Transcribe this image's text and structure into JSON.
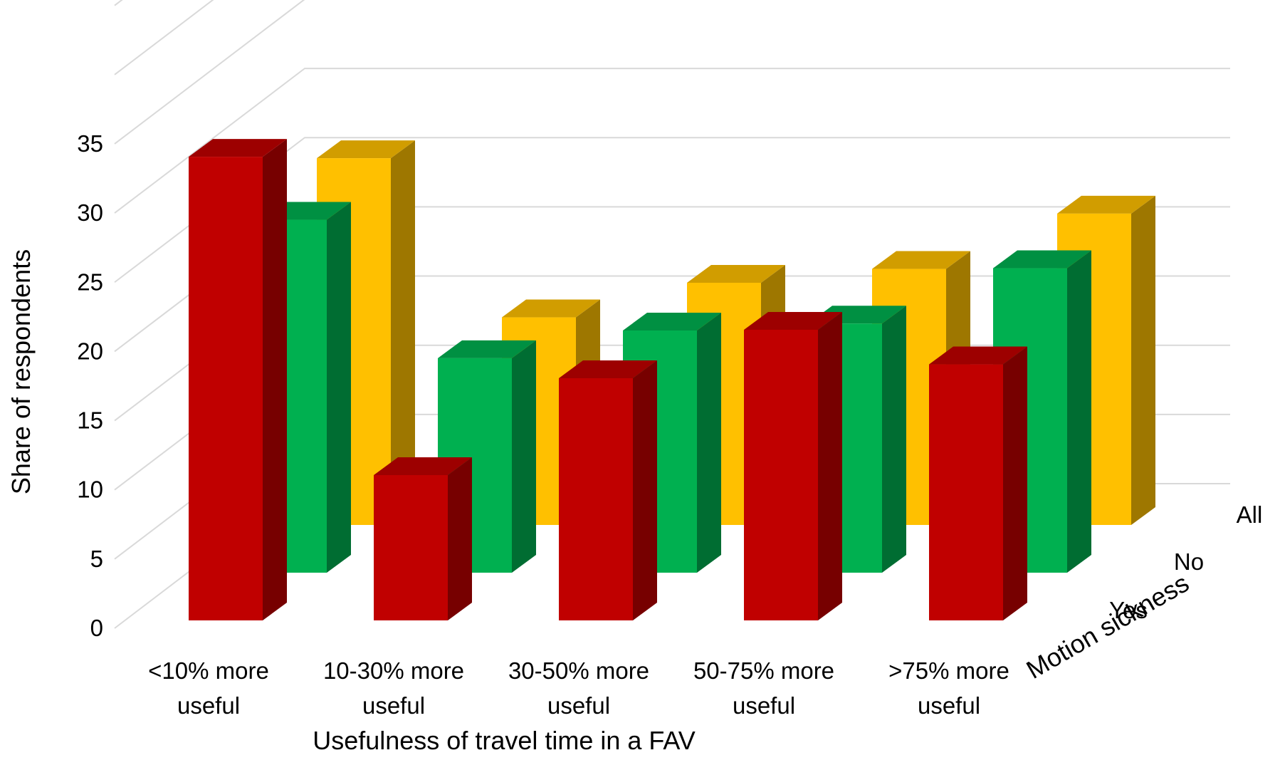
{
  "chart_data": {
    "type": "bar",
    "subtype": "3d-column",
    "categories": [
      "<10% more useful",
      "10-30% more useful",
      "30-50% more useful",
      "50-75% more useful",
      ">75% more useful"
    ],
    "category_lines": [
      [
        "<10% more",
        "useful"
      ],
      [
        "10-30% more",
        "useful"
      ],
      [
        "30-50% more",
        "useful"
      ],
      [
        "50-75% more",
        "useful"
      ],
      [
        ">75% more",
        "useful"
      ]
    ],
    "series": [
      {
        "name": "Yes",
        "values": [
          33.5,
          10.5,
          17.5,
          21.0,
          18.5
        ],
        "color": "#c00000"
      },
      {
        "name": "No",
        "values": [
          25.5,
          15.5,
          17.5,
          18.0,
          22.0
        ],
        "color": "#00b050"
      },
      {
        "name": "All",
        "values": [
          26.5,
          15.0,
          17.5,
          18.5,
          22.5
        ],
        "color": "#ffc000"
      }
    ],
    "depth_axis_title": "Motion sickness",
    "xlabel": "Usefulness of travel time in a FAV",
    "ylabel": "Share of respondents",
    "ylim": [
      0,
      35
    ],
    "yticks": [
      0,
      5,
      10,
      15,
      20,
      25,
      30,
      35
    ],
    "grid": true,
    "legend": "none"
  }
}
